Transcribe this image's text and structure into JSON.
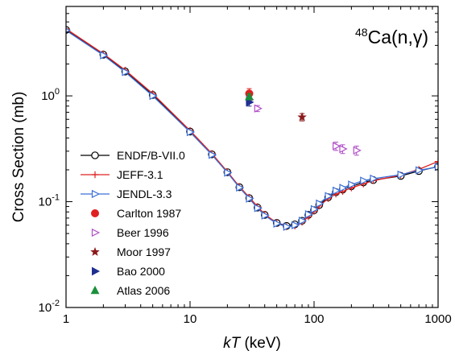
{
  "chart_data": {
    "type": "line",
    "title": {
      "superscript": "48",
      "main": "Ca(n,γ)"
    },
    "xlabel": {
      "italic": "kT",
      "rest": " (keV)"
    },
    "ylabel": "Cross Section (mb)",
    "xscale": "log",
    "yscale": "log",
    "xlim": [
      1,
      1000
    ],
    "ylim": [
      0.01,
      7
    ],
    "xticks": [
      {
        "value": 1,
        "label": "1"
      },
      {
        "value": 10,
        "label": "10"
      },
      {
        "value": 100,
        "label": "100"
      },
      {
        "value": 1000,
        "label": "1000"
      }
    ],
    "yticks": [
      {
        "value": 0.01,
        "base": "10",
        "exp": "-2"
      },
      {
        "value": 0.1,
        "base": "10",
        "exp": "-1"
      },
      {
        "value": 1,
        "base": "10",
        "exp": "0"
      }
    ],
    "grid": false,
    "legend_position": "lower-left",
    "series": [
      {
        "name": "ENDF/B-VII.0",
        "kind": "line",
        "color": "#000000",
        "marker": "open-circle",
        "x": [
          1,
          2,
          3,
          5,
          10,
          15,
          20,
          25,
          30,
          35,
          40,
          50,
          60,
          70,
          80,
          90,
          100,
          110,
          130,
          150,
          170,
          200,
          250,
          300,
          500,
          700,
          1000
        ],
        "y": [
          4.2,
          2.45,
          1.7,
          1.02,
          0.46,
          0.28,
          0.19,
          0.137,
          0.108,
          0.088,
          0.075,
          0.063,
          0.059,
          0.061,
          0.066,
          0.075,
          0.083,
          0.093,
          0.11,
          0.123,
          0.13,
          0.14,
          0.152,
          0.16,
          0.175,
          0.195,
          0.215
        ]
      },
      {
        "name": "JEFF-3.1",
        "kind": "line",
        "color": "#e02020",
        "marker": "plus",
        "x": [
          1,
          2,
          3,
          5,
          10,
          15,
          20,
          25,
          30,
          35,
          40,
          50,
          60,
          70,
          80,
          90,
          100,
          110,
          130,
          150,
          170,
          200,
          250,
          300,
          500,
          700,
          1000
        ],
        "y": [
          4.3,
          2.5,
          1.75,
          1.05,
          0.47,
          0.285,
          0.192,
          0.139,
          0.11,
          0.09,
          0.076,
          0.063,
          0.058,
          0.059,
          0.064,
          0.072,
          0.081,
          0.091,
          0.107,
          0.118,
          0.125,
          0.135,
          0.147,
          0.158,
          0.178,
          0.202,
          0.24
        ]
      },
      {
        "name": "JENDL-3.3",
        "kind": "line",
        "color": "#3b6fd8",
        "marker": "open-triangle-right",
        "x": [
          1,
          2,
          3,
          5,
          10,
          15,
          20,
          25,
          30,
          35,
          40,
          50,
          60,
          70,
          80,
          90,
          100,
          110,
          130,
          150,
          170,
          200,
          250,
          300,
          500,
          700,
          1000
        ],
        "y": [
          4.15,
          2.42,
          1.68,
          1.0,
          0.455,
          0.277,
          0.188,
          0.136,
          0.107,
          0.087,
          0.074,
          0.062,
          0.058,
          0.06,
          0.066,
          0.076,
          0.085,
          0.096,
          0.113,
          0.127,
          0.135,
          0.145,
          0.158,
          0.165,
          0.18,
          0.198,
          0.213
        ]
      },
      {
        "name": "Carlton 1987",
        "kind": "points",
        "color": "#e02020",
        "marker": "filled-circle",
        "points": [
          {
            "x": 30,
            "y": 1.05,
            "err": 0.12
          }
        ]
      },
      {
        "name": "Beer 1996",
        "kind": "points",
        "color": "#b050c8",
        "marker": "open-triangle-right",
        "points": [
          {
            "x": 30,
            "y": 0.92,
            "err": 0.06
          },
          {
            "x": 35,
            "y": 0.76,
            "err": 0.05
          },
          {
            "x": 150,
            "y": 0.335,
            "err": 0.03
          },
          {
            "x": 170,
            "y": 0.315,
            "err": 0.03
          },
          {
            "x": 220,
            "y": 0.305,
            "err": 0.03
          }
        ]
      },
      {
        "name": "Moor 1997",
        "kind": "points",
        "color": "#8b1a1a",
        "marker": "star",
        "points": [
          {
            "x": 80,
            "y": 0.63,
            "err": 0.05
          }
        ]
      },
      {
        "name": "Bao 2000",
        "kind": "points",
        "color": "#1f2f8f",
        "marker": "filled-triangle-right",
        "points": [
          {
            "x": 30,
            "y": 0.87,
            "err": 0.07
          }
        ]
      },
      {
        "name": "Atlas 2006",
        "kind": "points",
        "color": "#1a8f3a",
        "marker": "filled-triangle-up",
        "points": [
          {
            "x": 30,
            "y": 0.98,
            "err": 0.06
          }
        ]
      }
    ]
  }
}
